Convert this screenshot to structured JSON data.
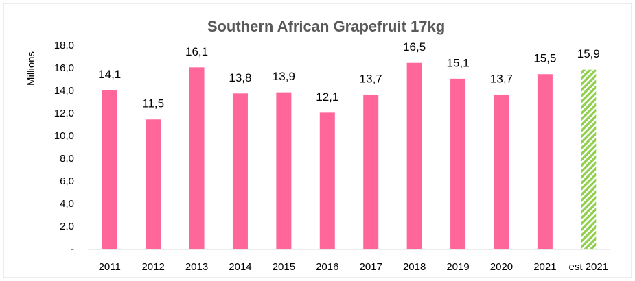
{
  "chart_data": {
    "type": "bar",
    "title": "Southern African Grapefruit 17kg",
    "y_label": "Millions",
    "categories": [
      "2011",
      "2012",
      "2013",
      "2014",
      "2015",
      "2016",
      "2017",
      "2018",
      "2019",
      "2020",
      "2021",
      "est 2021"
    ],
    "values": [
      14.1,
      11.5,
      16.1,
      13.8,
      13.9,
      12.1,
      13.7,
      16.5,
      15.1,
      13.7,
      15.5,
      15.9
    ],
    "value_labels": [
      "14,1",
      "11,5",
      "16,1",
      "13,8",
      "13,9",
      "12,1",
      "13,7",
      "16,5",
      "15,1",
      "13,7",
      "15,5",
      "15,9"
    ],
    "colors": [
      "#ff6699",
      "#ff6699",
      "#ff6699",
      "#ff6699",
      "#ff6699",
      "#ff6699",
      "#ff6699",
      "#ff6699",
      "#ff6699",
      "#ff6699",
      "#ff6699",
      "#92d050"
    ],
    "hatched": [
      false,
      false,
      false,
      false,
      false,
      false,
      false,
      false,
      false,
      false,
      false,
      true
    ],
    "ylim": [
      0,
      18
    ],
    "yticks": [
      {
        "value": 0,
        "label": "-"
      },
      {
        "value": 2,
        "label": "2,0"
      },
      {
        "value": 4,
        "label": "4,0"
      },
      {
        "value": 6,
        "label": "6,0"
      },
      {
        "value": 8,
        "label": "8,0"
      },
      {
        "value": 10,
        "label": "10,0"
      },
      {
        "value": 12,
        "label": "12,0"
      },
      {
        "value": 14,
        "label": "14,0"
      },
      {
        "value": 16,
        "label": "16,0"
      },
      {
        "value": 18,
        "label": "18,0"
      }
    ],
    "grid": false
  }
}
